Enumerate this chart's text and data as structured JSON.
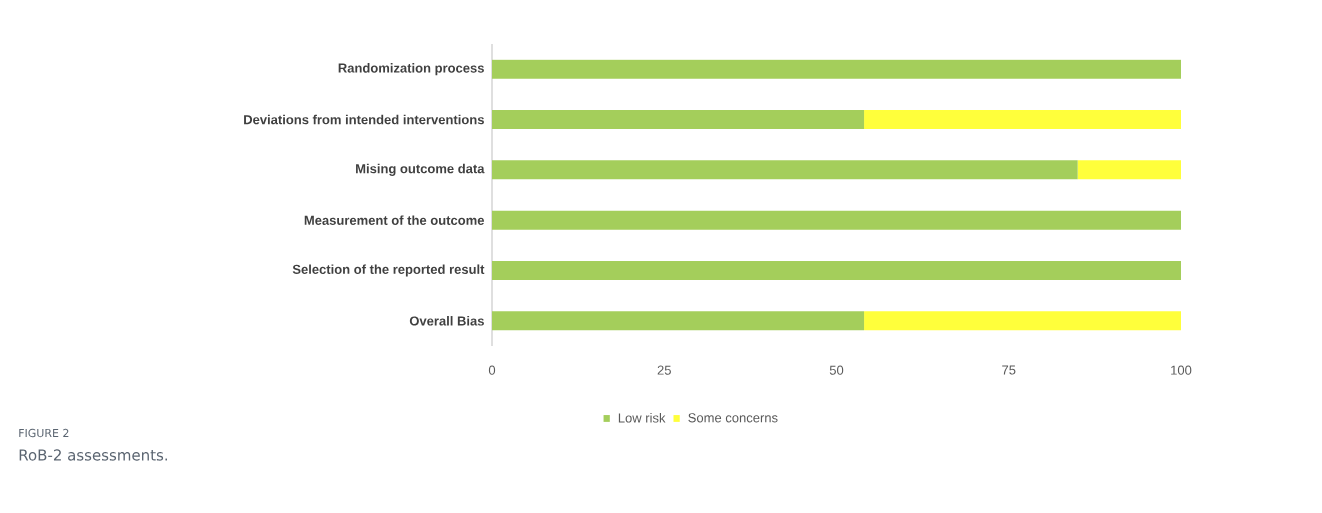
{
  "chart_data": {
    "type": "bar",
    "orientation": "horizontal",
    "stacked": true,
    "categories": [
      "Randomization process",
      "Deviations from intended interventions",
      "Mising outcome data",
      "Measurement of the outcome",
      "Selection of the reported result",
      "Overall Bias"
    ],
    "series": [
      {
        "name": "Low risk",
        "color": "#a4ce5b",
        "values": [
          100,
          54,
          85,
          100,
          100,
          54
        ]
      },
      {
        "name": "Some concerns",
        "color": "#ffff3b",
        "values": [
          0,
          46,
          15,
          0,
          0,
          46
        ]
      }
    ],
    "xlim": [
      0,
      100
    ],
    "xticks": [
      0,
      25,
      50,
      75,
      100
    ],
    "legend": "bottom",
    "annotations": [
      "FIGURE 2",
      "RoB-2 assessments."
    ]
  }
}
